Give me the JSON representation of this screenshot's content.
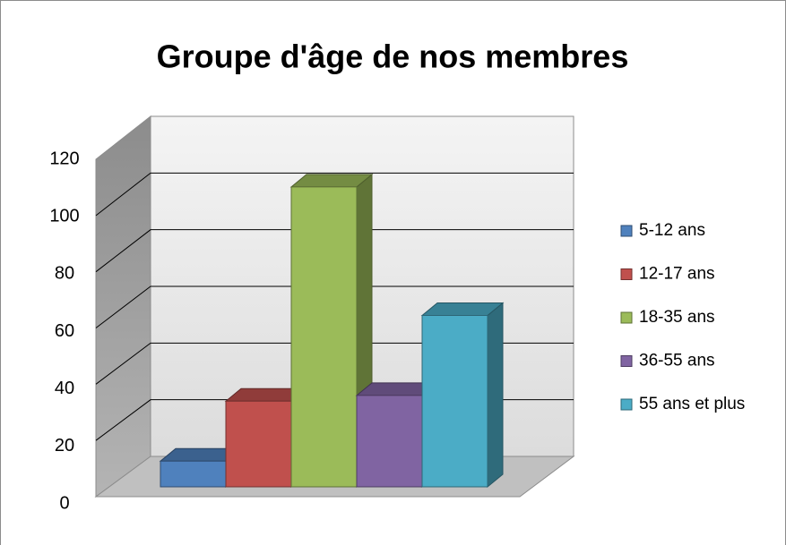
{
  "chart_data": {
    "type": "bar3d",
    "title": "Groupe d'âge de nos membres",
    "series": [
      {
        "name": "5-12 ans",
        "color": "#4f81bd",
        "values": [
          9
        ]
      },
      {
        "name": "12-17 ans",
        "color": "#c0504d",
        "values": [
          30
        ]
      },
      {
        "name": "18-35 ans",
        "color": "#9bbb59",
        "values": [
          105
        ]
      },
      {
        "name": "36-55 ans",
        "color": "#8064a2",
        "values": [
          32
        ]
      },
      {
        "name": "55 ans et plus",
        "color": "#4bacc6",
        "values": [
          60
        ]
      }
    ],
    "ylim": [
      0,
      120
    ],
    "yticks": [
      0,
      20,
      40,
      60,
      80,
      100,
      120
    ],
    "grid": true,
    "legend": "right"
  }
}
